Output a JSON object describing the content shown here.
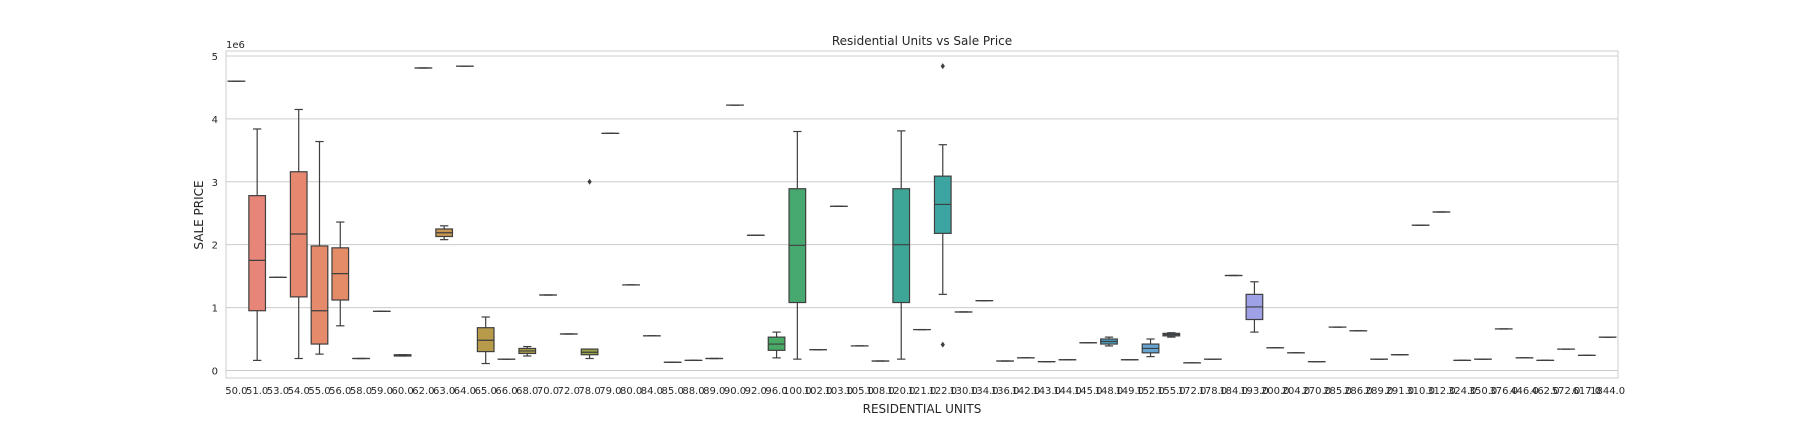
{
  "chart_data": {
    "type": "box",
    "title": "Residential Units vs Sale Price",
    "xlabel": "RESIDENTIAL UNITS",
    "ylabel": "SALE PRICE",
    "y_offset_label": "1e6",
    "ylim": [
      -120000,
      5080000
    ],
    "y_ticks": [
      0,
      1000000,
      2000000,
      3000000,
      4000000,
      5000000
    ],
    "y_tick_labels": [
      "0",
      "1",
      "2",
      "3",
      "4",
      "5"
    ],
    "grid": true,
    "categories": [
      "50.0",
      "51.0",
      "53.0",
      "54.0",
      "55.0",
      "56.0",
      "58.0",
      "59.0",
      "60.0",
      "62.0",
      "63.0",
      "64.0",
      "65.0",
      "66.0",
      "68.0",
      "70.0",
      "72.0",
      "78.0",
      "79.0",
      "80.0",
      "84.0",
      "85.0",
      "88.0",
      "89.0",
      "90.0",
      "92.0",
      "96.0",
      "100.0",
      "102.0",
      "103.0",
      "105.0",
      "108.0",
      "120.0",
      "121.0",
      "122.0",
      "130.0",
      "134.0",
      "136.0",
      "142.0",
      "143.0",
      "144.0",
      "145.0",
      "148.0",
      "149.0",
      "152.0",
      "155.0",
      "172.0",
      "178.0",
      "184.0",
      "193.0",
      "200.0",
      "204.0",
      "270.0",
      "285.0",
      "286.0",
      "289.0",
      "291.0",
      "310.0",
      "312.0",
      "324.0",
      "350.0",
      "376.0",
      "446.0",
      "462.0",
      "572.0",
      "617.0",
      "1844.0"
    ],
    "boxes": [
      {
        "q1": 4600000,
        "median": 4600000,
        "q3": 4600000,
        "whislo": 4600000,
        "whishi": 4600000,
        "fliers": []
      },
      {
        "q1": 950000,
        "median": 1750000,
        "q3": 2780000,
        "whislo": 160000,
        "whishi": 3840000,
        "fliers": []
      },
      {
        "q1": 1480000,
        "median": 1480000,
        "q3": 1480000,
        "whislo": 1480000,
        "whishi": 1480000,
        "fliers": []
      },
      {
        "q1": 1170000,
        "median": 2170000,
        "q3": 3160000,
        "whislo": 190000,
        "whishi": 4150000,
        "fliers": []
      },
      {
        "q1": 420000,
        "median": 950000,
        "q3": 1980000,
        "whislo": 260000,
        "whishi": 3640000,
        "fliers": []
      },
      {
        "q1": 1120000,
        "median": 1540000,
        "q3": 1950000,
        "whislo": 710000,
        "whishi": 2360000,
        "fliers": []
      },
      {
        "q1": 190000,
        "median": 190000,
        "q3": 190000,
        "whislo": 190000,
        "whishi": 190000,
        "fliers": []
      },
      {
        "q1": 940000,
        "median": 940000,
        "q3": 940000,
        "whislo": 940000,
        "whishi": 940000,
        "fliers": []
      },
      {
        "q1": 230000,
        "median": 240000,
        "q3": 250000,
        "whislo": 230000,
        "whishi": 250000,
        "fliers": []
      },
      {
        "q1": 4810000,
        "median": 4810000,
        "q3": 4810000,
        "whislo": 4810000,
        "whishi": 4810000,
        "fliers": []
      },
      {
        "q1": 2130000,
        "median": 2190000,
        "q3": 2250000,
        "whislo": 2080000,
        "whishi": 2300000,
        "fliers": []
      },
      {
        "q1": 4840000,
        "median": 4840000,
        "q3": 4840000,
        "whislo": 4840000,
        "whishi": 4840000,
        "fliers": []
      },
      {
        "q1": 300000,
        "median": 480000,
        "q3": 680000,
        "whislo": 110000,
        "whishi": 850000,
        "fliers": []
      },
      {
        "q1": 180000,
        "median": 180000,
        "q3": 180000,
        "whislo": 180000,
        "whishi": 180000,
        "fliers": []
      },
      {
        "q1": 270000,
        "median": 310000,
        "q3": 350000,
        "whislo": 230000,
        "whishi": 380000,
        "fliers": []
      },
      {
        "q1": 1200000,
        "median": 1200000,
        "q3": 1200000,
        "whislo": 1200000,
        "whishi": 1200000,
        "fliers": []
      },
      {
        "q1": 580000,
        "median": 580000,
        "q3": 580000,
        "whislo": 580000,
        "whishi": 580000,
        "fliers": []
      },
      {
        "q1": 250000,
        "median": 290000,
        "q3": 340000,
        "whislo": 190000,
        "whishi": 340000,
        "fliers": [
          3000000
        ]
      },
      {
        "q1": 3770000,
        "median": 3770000,
        "q3": 3770000,
        "whislo": 3770000,
        "whishi": 3770000,
        "fliers": []
      },
      {
        "q1": 1360000,
        "median": 1360000,
        "q3": 1360000,
        "whislo": 1360000,
        "whishi": 1360000,
        "fliers": []
      },
      {
        "q1": 550000,
        "median": 550000,
        "q3": 550000,
        "whislo": 550000,
        "whishi": 550000,
        "fliers": []
      },
      {
        "q1": 130000,
        "median": 130000,
        "q3": 130000,
        "whislo": 130000,
        "whishi": 130000,
        "fliers": []
      },
      {
        "q1": 160000,
        "median": 160000,
        "q3": 160000,
        "whislo": 160000,
        "whishi": 160000,
        "fliers": []
      },
      {
        "q1": 190000,
        "median": 190000,
        "q3": 190000,
        "whislo": 190000,
        "whishi": 190000,
        "fliers": []
      },
      {
        "q1": 4220000,
        "median": 4220000,
        "q3": 4220000,
        "whislo": 4220000,
        "whishi": 4220000,
        "fliers": []
      },
      {
        "q1": 2150000,
        "median": 2150000,
        "q3": 2150000,
        "whislo": 2150000,
        "whishi": 2150000,
        "fliers": []
      },
      {
        "q1": 320000,
        "median": 420000,
        "q3": 530000,
        "whislo": 200000,
        "whishi": 610000,
        "fliers": []
      },
      {
        "q1": 1080000,
        "median": 1990000,
        "q3": 2890000,
        "whislo": 180000,
        "whishi": 3800000,
        "fliers": []
      },
      {
        "q1": 330000,
        "median": 330000,
        "q3": 330000,
        "whislo": 330000,
        "whishi": 330000,
        "fliers": []
      },
      {
        "q1": 2610000,
        "median": 2610000,
        "q3": 2610000,
        "whislo": 2610000,
        "whishi": 2610000,
        "fliers": []
      },
      {
        "q1": 390000,
        "median": 390000,
        "q3": 390000,
        "whislo": 390000,
        "whishi": 390000,
        "fliers": []
      },
      {
        "q1": 150000,
        "median": 150000,
        "q3": 150000,
        "whislo": 150000,
        "whishi": 150000,
        "fliers": []
      },
      {
        "q1": 1080000,
        "median": 2000000,
        "q3": 2890000,
        "whislo": 180000,
        "whishi": 3810000,
        "fliers": []
      },
      {
        "q1": 650000,
        "median": 650000,
        "q3": 650000,
        "whislo": 650000,
        "whishi": 650000,
        "fliers": []
      },
      {
        "q1": 2180000,
        "median": 2640000,
        "q3": 3090000,
        "whislo": 1210000,
        "whishi": 3590000,
        "fliers": [
          4840000,
          410000
        ]
      },
      {
        "q1": 930000,
        "median": 930000,
        "q3": 930000,
        "whislo": 930000,
        "whishi": 930000,
        "fliers": []
      },
      {
        "q1": 1110000,
        "median": 1110000,
        "q3": 1110000,
        "whislo": 1110000,
        "whishi": 1110000,
        "fliers": []
      },
      {
        "q1": 150000,
        "median": 150000,
        "q3": 150000,
        "whislo": 150000,
        "whishi": 150000,
        "fliers": []
      },
      {
        "q1": 200000,
        "median": 200000,
        "q3": 200000,
        "whislo": 200000,
        "whishi": 200000,
        "fliers": []
      },
      {
        "q1": 140000,
        "median": 140000,
        "q3": 140000,
        "whislo": 140000,
        "whishi": 140000,
        "fliers": []
      },
      {
        "q1": 170000,
        "median": 170000,
        "q3": 170000,
        "whislo": 170000,
        "whishi": 170000,
        "fliers": []
      },
      {
        "q1": 440000,
        "median": 440000,
        "q3": 440000,
        "whislo": 440000,
        "whishi": 440000,
        "fliers": []
      },
      {
        "q1": 420000,
        "median": 460000,
        "q3": 500000,
        "whislo": 390000,
        "whishi": 530000,
        "fliers": []
      },
      {
        "q1": 170000,
        "median": 170000,
        "q3": 170000,
        "whislo": 170000,
        "whishi": 170000,
        "fliers": []
      },
      {
        "q1": 280000,
        "median": 350000,
        "q3": 420000,
        "whislo": 220000,
        "whishi": 500000,
        "fliers": []
      },
      {
        "q1": 550000,
        "median": 570000,
        "q3": 590000,
        "whislo": 530000,
        "whishi": 600000,
        "fliers": []
      },
      {
        "q1": 120000,
        "median": 120000,
        "q3": 120000,
        "whislo": 120000,
        "whishi": 120000,
        "fliers": []
      },
      {
        "q1": 180000,
        "median": 180000,
        "q3": 180000,
        "whislo": 180000,
        "whishi": 180000,
        "fliers": []
      },
      {
        "q1": 1510000,
        "median": 1510000,
        "q3": 1510000,
        "whislo": 1510000,
        "whishi": 1510000,
        "fliers": []
      },
      {
        "q1": 810000,
        "median": 1010000,
        "q3": 1210000,
        "whislo": 610000,
        "whishi": 1410000,
        "fliers": []
      },
      {
        "q1": 360000,
        "median": 360000,
        "q3": 360000,
        "whislo": 360000,
        "whishi": 360000,
        "fliers": []
      },
      {
        "q1": 280000,
        "median": 280000,
        "q3": 280000,
        "whislo": 280000,
        "whishi": 280000,
        "fliers": []
      },
      {
        "q1": 140000,
        "median": 140000,
        "q3": 140000,
        "whislo": 140000,
        "whishi": 140000,
        "fliers": []
      },
      {
        "q1": 690000,
        "median": 690000,
        "q3": 690000,
        "whislo": 690000,
        "whishi": 690000,
        "fliers": []
      },
      {
        "q1": 630000,
        "median": 630000,
        "q3": 630000,
        "whislo": 630000,
        "whishi": 630000,
        "fliers": []
      },
      {
        "q1": 180000,
        "median": 180000,
        "q3": 180000,
        "whislo": 180000,
        "whishi": 180000,
        "fliers": []
      },
      {
        "q1": 250000,
        "median": 250000,
        "q3": 250000,
        "whislo": 250000,
        "whishi": 250000,
        "fliers": []
      },
      {
        "q1": 2310000,
        "median": 2310000,
        "q3": 2310000,
        "whislo": 2310000,
        "whishi": 2310000,
        "fliers": []
      },
      {
        "q1": 2520000,
        "median": 2520000,
        "q3": 2520000,
        "whislo": 2520000,
        "whishi": 2520000,
        "fliers": []
      },
      {
        "q1": 160000,
        "median": 160000,
        "q3": 160000,
        "whislo": 160000,
        "whishi": 160000,
        "fliers": []
      },
      {
        "q1": 180000,
        "median": 180000,
        "q3": 180000,
        "whislo": 180000,
        "whishi": 180000,
        "fliers": []
      },
      {
        "q1": 660000,
        "median": 660000,
        "q3": 660000,
        "whislo": 660000,
        "whishi": 660000,
        "fliers": []
      },
      {
        "q1": 200000,
        "median": 200000,
        "q3": 200000,
        "whislo": 200000,
        "whishi": 200000,
        "fliers": []
      },
      {
        "q1": 160000,
        "median": 160000,
        "q3": 160000,
        "whislo": 160000,
        "whishi": 160000,
        "fliers": []
      },
      {
        "q1": 340000,
        "median": 340000,
        "q3": 340000,
        "whislo": 340000,
        "whishi": 340000,
        "fliers": []
      },
      {
        "q1": 240000,
        "median": 240000,
        "q3": 240000,
        "whislo": 240000,
        "whishi": 240000,
        "fliers": []
      },
      {
        "q1": 530000,
        "median": 530000,
        "q3": 530000,
        "whislo": 530000,
        "whishi": 530000,
        "fliers": []
      }
    ],
    "colors": {
      "palette_anchors": [
        "#e8837e",
        "#e38d62",
        "#b79b4a",
        "#94a645",
        "#4eab53",
        "#3fa78d",
        "#3ba3ab",
        "#4da2c6",
        "#95a4e5",
        "#cd93e8",
        "#e58bc0",
        "#e68599"
      ],
      "box_edge": "#3f3f3f",
      "grid": "#cccccc",
      "frame": "#cccccc"
    }
  }
}
